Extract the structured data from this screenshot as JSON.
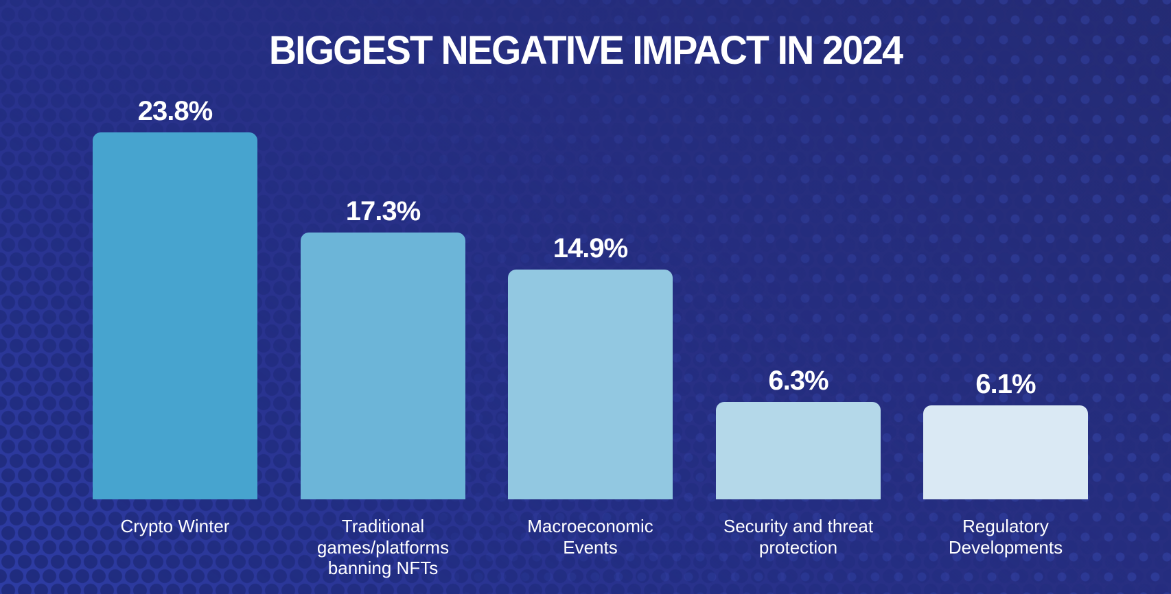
{
  "title": "BIGGEST NEGATIVE IMPACT IN 2024",
  "chart_data": {
    "type": "bar",
    "title": "BIGGEST NEGATIVE IMPACT IN 2024",
    "categories": [
      "Crypto Winter",
      "Traditional games/platforms banning NFTs",
      "Macroeconomic Events",
      "Security and threat protection",
      "Regulatory Developments"
    ],
    "values": [
      23.8,
      17.3,
      14.9,
      6.3,
      6.1
    ],
    "value_labels": [
      "23.8%",
      "17.3%",
      "14.9%",
      "6.3%",
      "6.1%"
    ],
    "bar_colors": [
      "#47a4cf",
      "#6cb5d8",
      "#92c8e1",
      "#b4d8e9",
      "#dae9f4"
    ],
    "xlabel": "",
    "ylabel": "",
    "ylim": [
      0,
      25
    ],
    "grid": false,
    "legend_position": "none",
    "value_label_position": "above-bar",
    "category_label_position": "below-bar",
    "text_color": "#ffffff",
    "background_colors": {
      "gradient_bottom_left": "#2e3da6",
      "gradient_top_right": "#242a70",
      "halftone_dot_dark": "#1f2b7c"
    }
  }
}
